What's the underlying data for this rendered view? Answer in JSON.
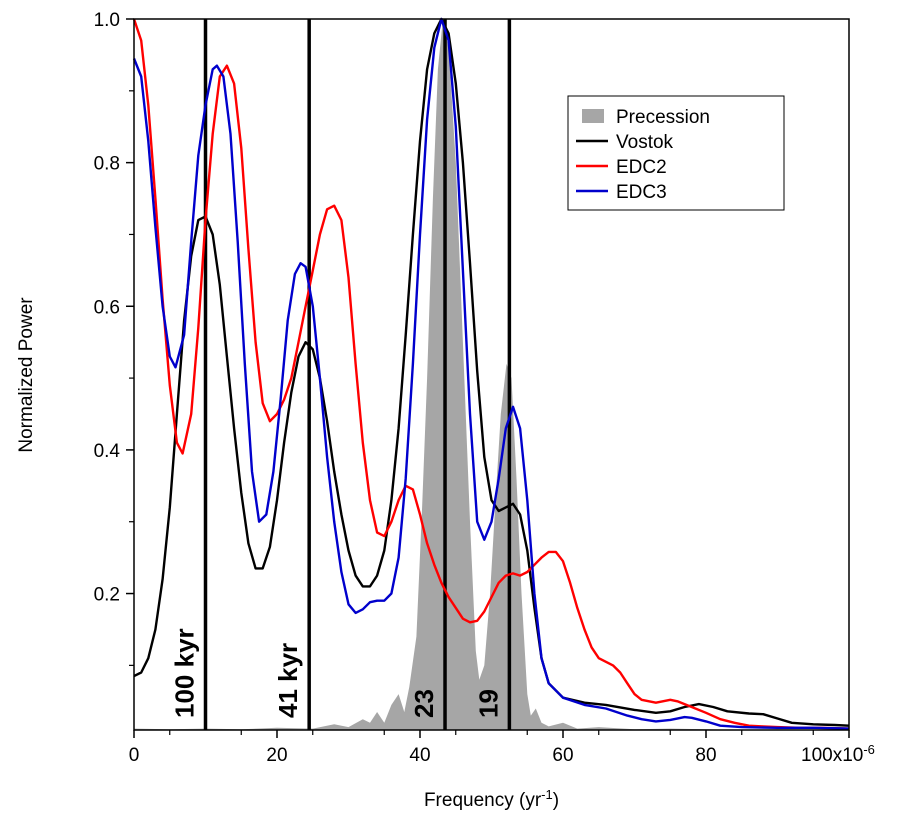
{
  "chart_data": {
    "type": "line",
    "title": "",
    "xlabel": "Frequency (yr",
    "xlabel_sup": "-1",
    "xlabel_end": ")",
    "ylabel": "Normalized Power",
    "xlim": [
      0,
      100
    ],
    "ylim": [
      0.01,
      1.0
    ],
    "x_ticks": [
      0,
      20,
      40,
      60,
      80,
      100
    ],
    "x_tick_labels": [
      "0",
      "20",
      "40",
      "60",
      "80",
      "100x10"
    ],
    "x_scale_sup": "-6",
    "y_ticks": [
      0.2,
      0.4,
      0.6,
      0.8,
      1.0
    ],
    "y_tick_labels": [
      "0.2",
      "0.4",
      "0.6",
      "0.8",
      "1.0"
    ],
    "grid": false,
    "legend_position": "top-right",
    "legend": [
      {
        "name": "Precession",
        "kind": "area",
        "color": "#a6a6a6"
      },
      {
        "name": "Vostok",
        "kind": "line",
        "color": "#000000"
      },
      {
        "name": "EDC2",
        "kind": "line",
        "color": "#ff0000"
      },
      {
        "name": "EDC3",
        "kind": "line",
        "color": "#0000cc"
      }
    ],
    "vertical_lines": [
      {
        "x": 10,
        "label": "100 kyr"
      },
      {
        "x": 24.5,
        "label": "41 kyr"
      },
      {
        "x": 43.5,
        "label": "23"
      },
      {
        "x": 52.5,
        "label": "19"
      }
    ],
    "series": [
      {
        "name": "Precession",
        "color": "#a6a6a6",
        "kind": "area",
        "points": [
          [
            0,
            0.012
          ],
          [
            5,
            0.011
          ],
          [
            10,
            0.012
          ],
          [
            15,
            0.011
          ],
          [
            20,
            0.013
          ],
          [
            25,
            0.012
          ],
          [
            28,
            0.018
          ],
          [
            30,
            0.014
          ],
          [
            32,
            0.025
          ],
          [
            33,
            0.02
          ],
          [
            34,
            0.035
          ],
          [
            35,
            0.02
          ],
          [
            36,
            0.045
          ],
          [
            37,
            0.06
          ],
          [
            37.8,
            0.035
          ],
          [
            38.5,
            0.07
          ],
          [
            39.5,
            0.14
          ],
          [
            40.3,
            0.32
          ],
          [
            41,
            0.5
          ],
          [
            41.8,
            0.75
          ],
          [
            42.5,
            0.93
          ],
          [
            43.2,
            1.0
          ],
          [
            44,
            0.96
          ],
          [
            45,
            0.8
          ],
          [
            46,
            0.55
          ],
          [
            47,
            0.3
          ],
          [
            47.8,
            0.12
          ],
          [
            48.3,
            0.08
          ],
          [
            49,
            0.1
          ],
          [
            49.8,
            0.2
          ],
          [
            50.5,
            0.32
          ],
          [
            51.3,
            0.45
          ],
          [
            52.1,
            0.52
          ],
          [
            52.8,
            0.5
          ],
          [
            53.5,
            0.36
          ],
          [
            54.2,
            0.2
          ],
          [
            55,
            0.06
          ],
          [
            55.5,
            0.03
          ],
          [
            56.2,
            0.04
          ],
          [
            57,
            0.02
          ],
          [
            58,
            0.015
          ],
          [
            60,
            0.02
          ],
          [
            62,
            0.012
          ],
          [
            65,
            0.014
          ],
          [
            70,
            0.011
          ],
          [
            75,
            0.012
          ],
          [
            80,
            0.011
          ],
          [
            85,
            0.01
          ],
          [
            90,
            0.011
          ],
          [
            100,
            0.01
          ]
        ]
      },
      {
        "name": "Vostok",
        "color": "#000000",
        "kind": "line",
        "points": [
          [
            0,
            0.085
          ],
          [
            1,
            0.09
          ],
          [
            2,
            0.11
          ],
          [
            3,
            0.15
          ],
          [
            4,
            0.22
          ],
          [
            5,
            0.32
          ],
          [
            6,
            0.45
          ],
          [
            7,
            0.58
          ],
          [
            8,
            0.67
          ],
          [
            9,
            0.72
          ],
          [
            10,
            0.725
          ],
          [
            11,
            0.7
          ],
          [
            12,
            0.63
          ],
          [
            13,
            0.53
          ],
          [
            14,
            0.43
          ],
          [
            15,
            0.34
          ],
          [
            16,
            0.27
          ],
          [
            17,
            0.235
          ],
          [
            18,
            0.235
          ],
          [
            19,
            0.265
          ],
          [
            20,
            0.33
          ],
          [
            21,
            0.41
          ],
          [
            22,
            0.48
          ],
          [
            23,
            0.53
          ],
          [
            24,
            0.55
          ],
          [
            25,
            0.54
          ],
          [
            26,
            0.5
          ],
          [
            27,
            0.44
          ],
          [
            28,
            0.37
          ],
          [
            29,
            0.31
          ],
          [
            30,
            0.26
          ],
          [
            31,
            0.225
          ],
          [
            32,
            0.21
          ],
          [
            33,
            0.21
          ],
          [
            34,
            0.225
          ],
          [
            35,
            0.26
          ],
          [
            36,
            0.33
          ],
          [
            37,
            0.43
          ],
          [
            38,
            0.56
          ],
          [
            39,
            0.7
          ],
          [
            40,
            0.83
          ],
          [
            41,
            0.93
          ],
          [
            42,
            0.98
          ],
          [
            43,
            1.0
          ],
          [
            44,
            0.98
          ],
          [
            45,
            0.91
          ],
          [
            46,
            0.8
          ],
          [
            47,
            0.66
          ],
          [
            48,
            0.51
          ],
          [
            49,
            0.39
          ],
          [
            50,
            0.33
          ],
          [
            51,
            0.315
          ],
          [
            52,
            0.32
          ],
          [
            53,
            0.325
          ],
          [
            54,
            0.31
          ],
          [
            55,
            0.26
          ],
          [
            56,
            0.18
          ],
          [
            57,
            0.11
          ],
          [
            58,
            0.075
          ],
          [
            60,
            0.055
          ],
          [
            63,
            0.048
          ],
          [
            66,
            0.045
          ],
          [
            70,
            0.038
          ],
          [
            73,
            0.034
          ],
          [
            75,
            0.036
          ],
          [
            77,
            0.042
          ],
          [
            79,
            0.046
          ],
          [
            81,
            0.042
          ],
          [
            83,
            0.036
          ],
          [
            86,
            0.033
          ],
          [
            88,
            0.032
          ],
          [
            90,
            0.026
          ],
          [
            92,
            0.02
          ],
          [
            95,
            0.018
          ],
          [
            98,
            0.017
          ],
          [
            100,
            0.016
          ]
        ]
      },
      {
        "name": "EDC2",
        "color": "#ff0000",
        "kind": "line",
        "points": [
          [
            0,
            1.0
          ],
          [
            1,
            0.97
          ],
          [
            2,
            0.88
          ],
          [
            3,
            0.75
          ],
          [
            4,
            0.61
          ],
          [
            5,
            0.49
          ],
          [
            6,
            0.41
          ],
          [
            6.8,
            0.395
          ],
          [
            8,
            0.45
          ],
          [
            9,
            0.57
          ],
          [
            10,
            0.72
          ],
          [
            11,
            0.84
          ],
          [
            12,
            0.92
          ],
          [
            13,
            0.935
          ],
          [
            14,
            0.91
          ],
          [
            15,
            0.82
          ],
          [
            16,
            0.68
          ],
          [
            17,
            0.55
          ],
          [
            18,
            0.465
          ],
          [
            19,
            0.44
          ],
          [
            20,
            0.45
          ],
          [
            21,
            0.47
          ],
          [
            22,
            0.5
          ],
          [
            23,
            0.55
          ],
          [
            24,
            0.6
          ],
          [
            25,
            0.65
          ],
          [
            26,
            0.7
          ],
          [
            27,
            0.735
          ],
          [
            28,
            0.74
          ],
          [
            29,
            0.72
          ],
          [
            30,
            0.64
          ],
          [
            31,
            0.52
          ],
          [
            32,
            0.41
          ],
          [
            33,
            0.33
          ],
          [
            34,
            0.285
          ],
          [
            35,
            0.28
          ],
          [
            36,
            0.3
          ],
          [
            37,
            0.33
          ],
          [
            38,
            0.35
          ],
          [
            39,
            0.345
          ],
          [
            40,
            0.31
          ],
          [
            41,
            0.27
          ],
          [
            42,
            0.24
          ],
          [
            43,
            0.215
          ],
          [
            44,
            0.195
          ],
          [
            45,
            0.18
          ],
          [
            46,
            0.165
          ],
          [
            47,
            0.16
          ],
          [
            48,
            0.162
          ],
          [
            49,
            0.175
          ],
          [
            50,
            0.195
          ],
          [
            51,
            0.215
          ],
          [
            52,
            0.225
          ],
          [
            53,
            0.228
          ],
          [
            54,
            0.225
          ],
          [
            55,
            0.23
          ],
          [
            56,
            0.24
          ],
          [
            57,
            0.25
          ],
          [
            58,
            0.258
          ],
          [
            59,
            0.258
          ],
          [
            60,
            0.245
          ],
          [
            61,
            0.215
          ],
          [
            62,
            0.18
          ],
          [
            63,
            0.15
          ],
          [
            64,
            0.125
          ],
          [
            65,
            0.11
          ],
          [
            66,
            0.105
          ],
          [
            67,
            0.1
          ],
          [
            68,
            0.09
          ],
          [
            69,
            0.075
          ],
          [
            70,
            0.06
          ],
          [
            71,
            0.052
          ],
          [
            73,
            0.048
          ],
          [
            75,
            0.052
          ],
          [
            76,
            0.05
          ],
          [
            78,
            0.042
          ],
          [
            80,
            0.034
          ],
          [
            82,
            0.025
          ],
          [
            84,
            0.02
          ],
          [
            86,
            0.016
          ],
          [
            88,
            0.015
          ],
          [
            90,
            0.014
          ],
          [
            93,
            0.013
          ],
          [
            96,
            0.013
          ],
          [
            100,
            0.012
          ]
        ]
      },
      {
        "name": "EDC3",
        "color": "#0000cc",
        "kind": "line",
        "points": [
          [
            0,
            0.945
          ],
          [
            1,
            0.92
          ],
          [
            2,
            0.83
          ],
          [
            3,
            0.71
          ],
          [
            4,
            0.6
          ],
          [
            5,
            0.53
          ],
          [
            5.8,
            0.515
          ],
          [
            7,
            0.56
          ],
          [
            8,
            0.69
          ],
          [
            9,
            0.81
          ],
          [
            10,
            0.88
          ],
          [
            11,
            0.93
          ],
          [
            11.6,
            0.935
          ],
          [
            12.5,
            0.92
          ],
          [
            13.5,
            0.84
          ],
          [
            14.5,
            0.69
          ],
          [
            15.5,
            0.52
          ],
          [
            16.5,
            0.37
          ],
          [
            17.5,
            0.3
          ],
          [
            18.5,
            0.31
          ],
          [
            19.5,
            0.37
          ],
          [
            20.5,
            0.47
          ],
          [
            21.5,
            0.58
          ],
          [
            22.5,
            0.645
          ],
          [
            23.3,
            0.66
          ],
          [
            24,
            0.655
          ],
          [
            25,
            0.6
          ],
          [
            26,
            0.5
          ],
          [
            27,
            0.39
          ],
          [
            28,
            0.3
          ],
          [
            29,
            0.23
          ],
          [
            30,
            0.185
          ],
          [
            31,
            0.173
          ],
          [
            32,
            0.178
          ],
          [
            33,
            0.188
          ],
          [
            34,
            0.19
          ],
          [
            35,
            0.19
          ],
          [
            36,
            0.2
          ],
          [
            37,
            0.25
          ],
          [
            38,
            0.36
          ],
          [
            39,
            0.52
          ],
          [
            40,
            0.7
          ],
          [
            41,
            0.86
          ],
          [
            42,
            0.96
          ],
          [
            43,
            1.0
          ],
          [
            44,
            0.97
          ],
          [
            45,
            0.85
          ],
          [
            46,
            0.65
          ],
          [
            47,
            0.45
          ],
          [
            48,
            0.3
          ],
          [
            49,
            0.275
          ],
          [
            50,
            0.3
          ],
          [
            51,
            0.36
          ],
          [
            52,
            0.43
          ],
          [
            53,
            0.46
          ],
          [
            54,
            0.43
          ],
          [
            55,
            0.33
          ],
          [
            56,
            0.2
          ],
          [
            57,
            0.11
          ],
          [
            58,
            0.075
          ],
          [
            60,
            0.055
          ],
          [
            63,
            0.045
          ],
          [
            66,
            0.04
          ],
          [
            69,
            0.03
          ],
          [
            71,
            0.025
          ],
          [
            73,
            0.022
          ],
          [
            75,
            0.024
          ],
          [
            77,
            0.028
          ],
          [
            78,
            0.027
          ],
          [
            80,
            0.022
          ],
          [
            82,
            0.016
          ],
          [
            85,
            0.014
          ],
          [
            90,
            0.013
          ],
          [
            95,
            0.013
          ],
          [
            100,
            0.012
          ]
        ]
      }
    ]
  }
}
